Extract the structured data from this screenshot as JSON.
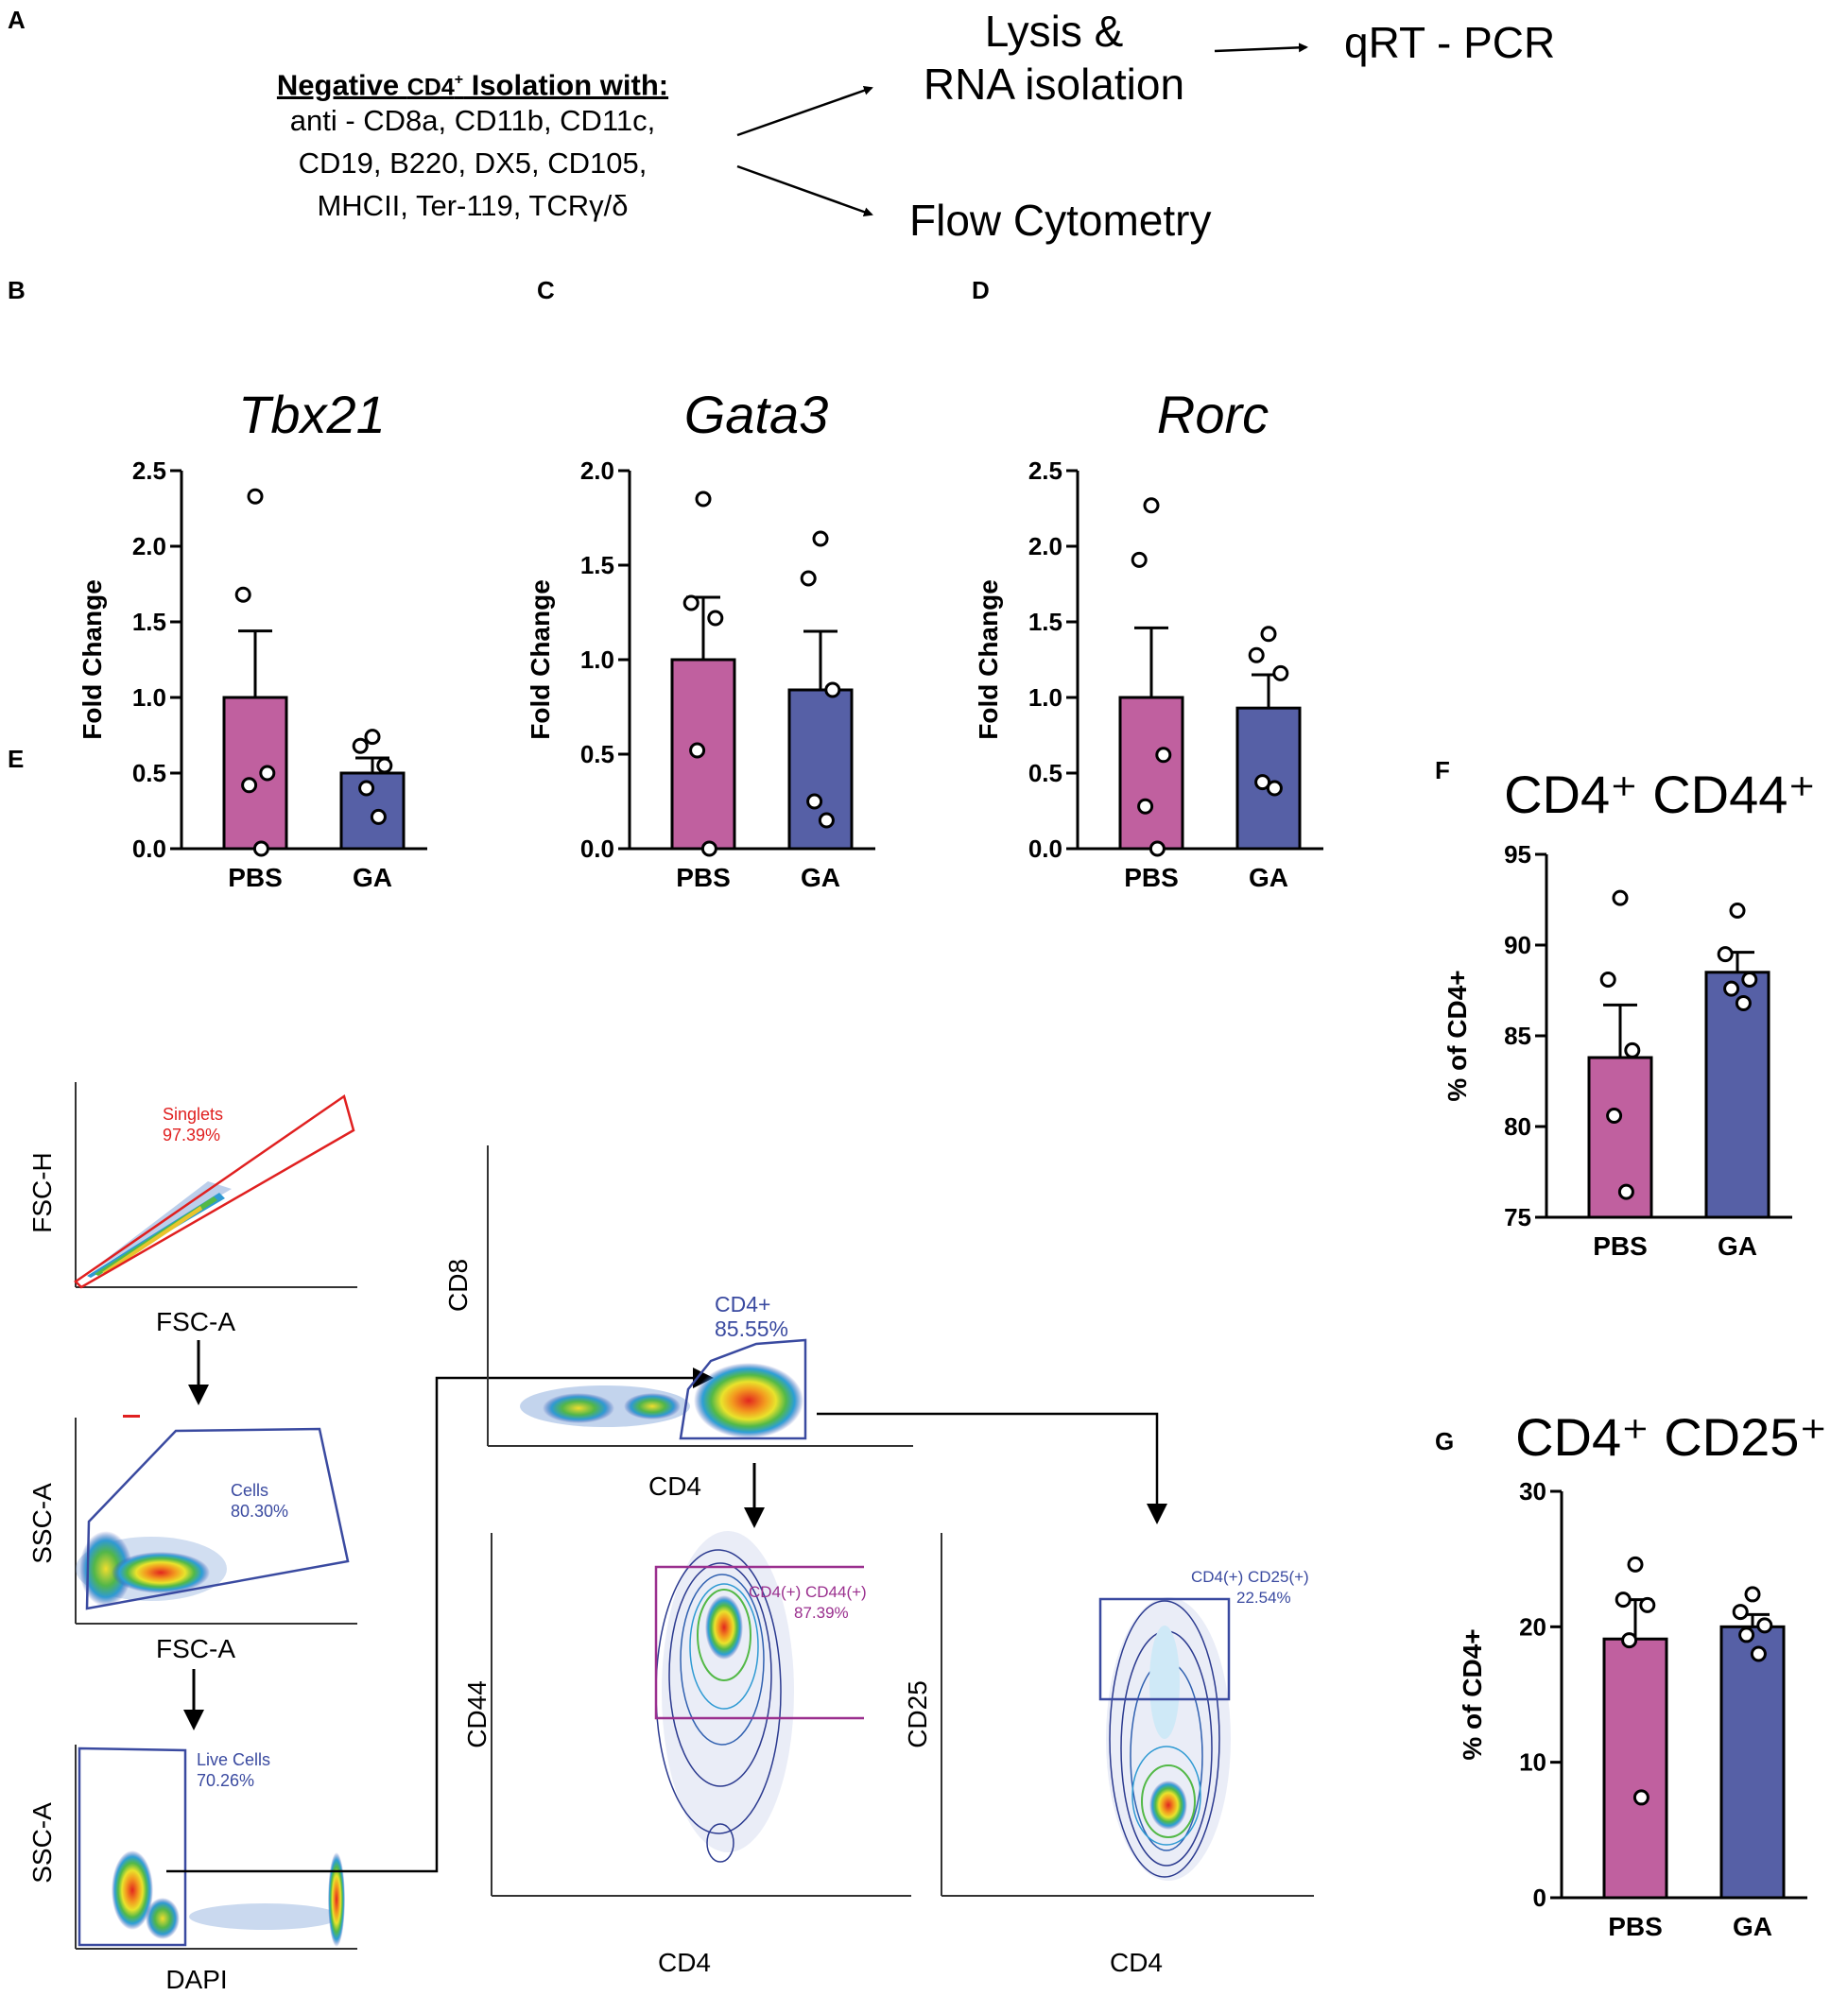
{
  "panels": {
    "A": "A",
    "B": "B",
    "C": "C",
    "D": "D",
    "E": "E",
    "F": "F",
    "G": "G"
  },
  "panel_a": {
    "isolation_title_prefix": "Negative ",
    "isolation_title_cd4": "CD4",
    "isolation_title_sup": "+",
    "isolation_title_suffix": " Isolation with:",
    "antibody_lines": [
      "anti - CD8a, CD11b, CD11c,",
      "CD19, B220, DX5, CD105,",
      "MHCII, Ter-119, TCRγ/δ"
    ],
    "lysis_lines": [
      "Lysis &",
      "RNA isolation"
    ],
    "qrt_pcr": "qRT - PCR",
    "flow": "Flow Cytometry"
  },
  "panel_e": {
    "singlets": {
      "name": "Singlets",
      "pct": "97.39%"
    },
    "cells": {
      "name": "Cells",
      "pct": "80.30%"
    },
    "live": {
      "name": "Live Cells",
      "pct": "70.26%"
    },
    "cd4": {
      "name": "CD4+",
      "pct": "85.55%"
    },
    "cd44": {
      "name": "CD4(+) CD44(+)",
      "pct": "87.39%"
    },
    "cd25": {
      "name": "CD4(+) CD25(+)",
      "pct": "22.54%"
    },
    "axes": {
      "fsc_h": "FSC-H",
      "fsc_a": "FSC-A",
      "ssc_a": "SSC-A",
      "dapi": "DAPI",
      "cd8": "CD8",
      "cd4": "CD4",
      "cd44": "CD44",
      "cd25": "CD25"
    }
  },
  "colors": {
    "pbs": "#c0609f",
    "ga": "#5660a6",
    "singlet_gate": "#e02020",
    "gate_blue": "#3a4aa0",
    "gate_purple": "#9a2f8e"
  },
  "chart_data": [
    {
      "id": "tbx21",
      "panel": "B",
      "type": "bar",
      "title": "Tbx21",
      "title_italic": true,
      "categories": [
        "PBS",
        "GA"
      ],
      "ylabel": "Fold Change",
      "ylim": [
        0,
        2.5
      ],
      "yticks": [
        "0.0",
        "0.5",
        "1.0",
        "1.5",
        "2.0",
        "2.5"
      ],
      "values": [
        1.0,
        0.5
      ],
      "sem": [
        0.44,
        0.1
      ],
      "points": [
        [
          2.33,
          1.68,
          0.5,
          0.42,
          0.0
        ],
        [
          0.74,
          0.68,
          0.55,
          0.4,
          0.21
        ]
      ]
    },
    {
      "id": "gata3",
      "panel": "C",
      "type": "bar",
      "title": "Gata3",
      "title_italic": true,
      "categories": [
        "PBS",
        "GA"
      ],
      "ylabel": "Fold Change",
      "ylim": [
        0,
        2.0
      ],
      "yticks": [
        "0.0",
        "0.5",
        "1.0",
        "1.5",
        "2.0"
      ],
      "values": [
        1.0,
        0.84
      ],
      "sem": [
        0.33,
        0.31
      ],
      "points": [
        [
          1.85,
          1.3,
          1.22,
          0.52,
          0.0
        ],
        [
          1.64,
          1.43,
          0.84,
          0.25,
          0.15
        ]
      ]
    },
    {
      "id": "rorc",
      "panel": "D",
      "type": "bar",
      "title": "Rorc",
      "title_italic": true,
      "categories": [
        "PBS",
        "GA"
      ],
      "ylabel": "Fold Change",
      "ylim": [
        0,
        2.5
      ],
      "yticks": [
        "0.0",
        "0.5",
        "1.0",
        "1.5",
        "2.0",
        "2.5"
      ],
      "values": [
        1.0,
        0.93
      ],
      "sem": [
        0.46,
        0.22
      ],
      "points": [
        [
          2.27,
          1.91,
          0.62,
          0.28,
          0.0
        ],
        [
          1.42,
          1.28,
          1.16,
          0.44,
          0.4
        ]
      ]
    },
    {
      "id": "cd44",
      "panel": "F",
      "type": "bar",
      "title": "CD4⁺ CD44⁺",
      "title_italic": false,
      "categories": [
        "PBS",
        "GA"
      ],
      "ylabel": "% of CD4+",
      "ylim": [
        75,
        95
      ],
      "yticks": [
        "75",
        "80",
        "85",
        "90",
        "95"
      ],
      "values": [
        83.8,
        88.5
      ],
      "sem": [
        2.9,
        1.1
      ],
      "points": [
        [
          92.6,
          88.1,
          84.2,
          80.6,
          76.4
        ],
        [
          91.9,
          89.5,
          88.1,
          87.6,
          86.8
        ]
      ]
    },
    {
      "id": "cd25",
      "panel": "G",
      "type": "bar",
      "title": "CD4⁺ CD25⁺",
      "title_italic": false,
      "categories": [
        "PBS",
        "GA"
      ],
      "ylabel": "% of CD4+",
      "ylim": [
        0,
        30
      ],
      "yticks": [
        "0",
        "10",
        "20",
        "30"
      ],
      "values": [
        19.1,
        20.0
      ],
      "sem": [
        2.9,
        0.9
      ],
      "points": [
        [
          24.6,
          22.0,
          21.6,
          19.0,
          7.4
        ],
        [
          22.4,
          21.1,
          20.1,
          19.4,
          18.0
        ]
      ]
    }
  ]
}
